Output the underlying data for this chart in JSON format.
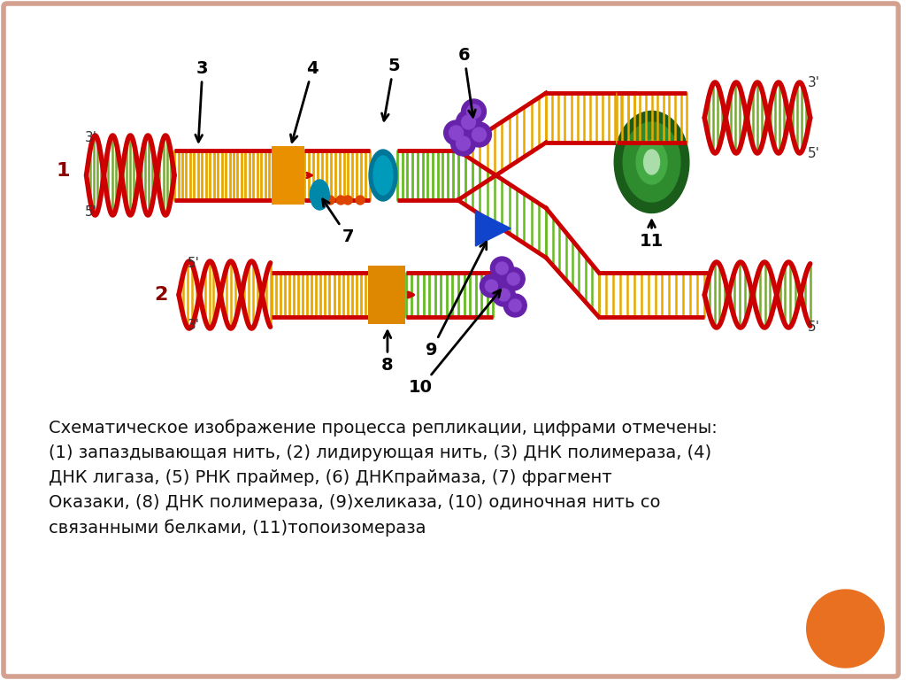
{
  "bg_color": "#FFFFFF",
  "border_color": "#D4A090",
  "text_description": "Схематическое изображение процесса репликации, цифрами отмечены:\n(1) запаздывающая нить, (2) лидирующая нить, (3) ДНК полимераза, (4)\nДНК лигаза, (5) РНК праймер, (6) ДНКпраймаза, (7) фрагмент\nОказаки, (8) ДНК полимераза, (9)хеликаза, (10) одиночная нить со\nсвязанными белками, (11)топоизомераза",
  "text_fontsize": 14.0,
  "orange_circle_color": "#E87020",
  "label_color": "#000000",
  "red_strand": "#CC0000",
  "yellow_rung": "#E8A800",
  "green_rung": "#66BB22",
  "orange_block": "#E89000",
  "teal_primer": "#009999",
  "purple_sphere": "#7733BB",
  "blue_triangle": "#1144CC",
  "green_ring": "#228B22",
  "helix_green": "#77AA33"
}
